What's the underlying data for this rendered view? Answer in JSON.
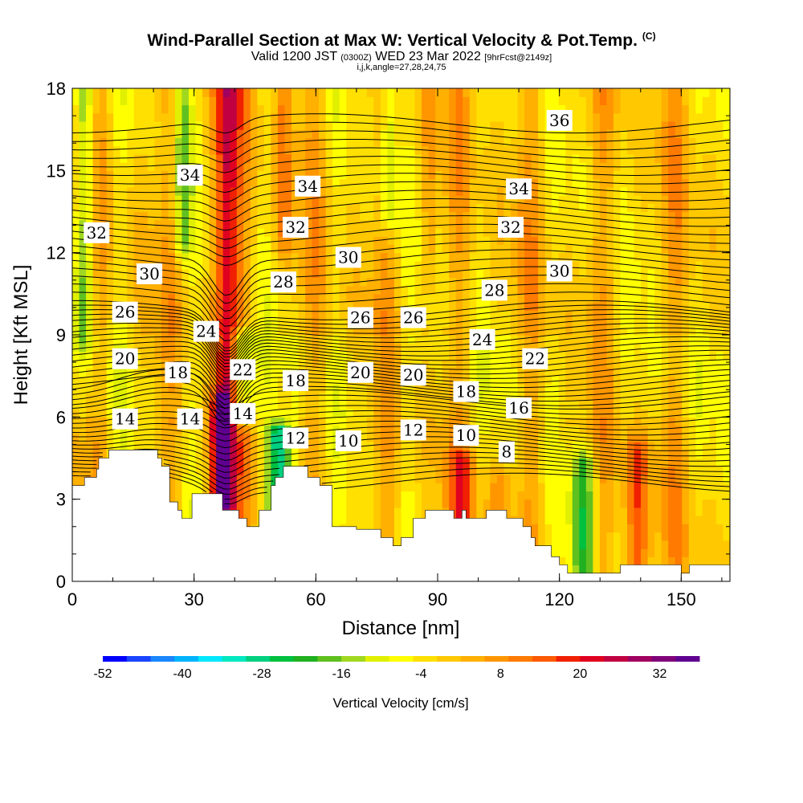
{
  "title": "Wind-Parallel Section at Max W: Vertical Velocity & Pot.Temp.",
  "copyright": "(C)",
  "subtitle": {
    "valid_main": "Valid 1200 JST",
    "valid_z": "(0300Z)",
    "valid_date": "WED 23 Mar 2022",
    "forecast": "[9hrFcst@2149z]"
  },
  "indices": "i,j,k,angle=27,28,24,75",
  "chart_data": {
    "type": "heatmap",
    "xlabel": "Distance [nm]",
    "ylabel": "Height [Kft MSL]",
    "xlim": [
      0,
      162
    ],
    "ylim": [
      0,
      18
    ],
    "x_ticks": [
      "0",
      "30",
      "60",
      "90",
      "120",
      "150"
    ],
    "x_tick_values": [
      0,
      30,
      60,
      90,
      120,
      150
    ],
    "y_ticks": [
      "0",
      "3",
      "6",
      "9",
      "12",
      "15",
      "18"
    ],
    "y_tick_values": [
      0,
      3,
      6,
      9,
      12,
      15,
      18
    ],
    "colorbar": {
      "label": "Vertical Velocity [cm/s]",
      "tick_labels": [
        "-52",
        "-40",
        "-28",
        "-16",
        "-4",
        "8",
        "20",
        "32"
      ],
      "min": -52,
      "max": 38,
      "step": 4,
      "colors": [
        "#0000ff",
        "#1a44ff",
        "#1a86ff",
        "#00b4ff",
        "#00e8ff",
        "#00e8c0",
        "#00d080",
        "#00c040",
        "#20b020",
        "#60c020",
        "#a0d820",
        "#e0f000",
        "#ffff00",
        "#ffe000",
        "#ffc800",
        "#ffb000",
        "#ff9600",
        "#ff7a00",
        "#ff5a00",
        "#f02000",
        "#e00020",
        "#c00040",
        "#a00060",
        "#80007a",
        "#600090"
      ]
    },
    "theta_contour_labels": [
      {
        "value": "36",
        "x": 120,
        "y": 16.8
      },
      {
        "value": "34",
        "x": 29,
        "y": 14.8
      },
      {
        "value": "34",
        "x": 58,
        "y": 14.4
      },
      {
        "value": "34",
        "x": 110,
        "y": 14.3
      },
      {
        "value": "32",
        "x": 6,
        "y": 12.7
      },
      {
        "value": "32",
        "x": 55,
        "y": 12.9
      },
      {
        "value": "32",
        "x": 108,
        "y": 12.9
      },
      {
        "value": "30",
        "x": 19,
        "y": 11.2
      },
      {
        "value": "30",
        "x": 68,
        "y": 11.8
      },
      {
        "value": "30",
        "x": 120,
        "y": 11.3
      },
      {
        "value": "28",
        "x": 52,
        "y": 10.9
      },
      {
        "value": "28",
        "x": 104,
        "y": 10.6
      },
      {
        "value": "26",
        "x": 13,
        "y": 9.8
      },
      {
        "value": "26",
        "x": 71,
        "y": 9.6
      },
      {
        "value": "26",
        "x": 84,
        "y": 9.6
      },
      {
        "value": "24",
        "x": 33,
        "y": 9.1
      },
      {
        "value": "24",
        "x": 101,
        "y": 8.8
      },
      {
        "value": "22",
        "x": 42,
        "y": 7.7
      },
      {
        "value": "22",
        "x": 114,
        "y": 8.1
      },
      {
        "value": "20",
        "x": 13,
        "y": 8.1
      },
      {
        "value": "20",
        "x": 71,
        "y": 7.6
      },
      {
        "value": "20",
        "x": 84,
        "y": 7.5
      },
      {
        "value": "18",
        "x": 26,
        "y": 7.6
      },
      {
        "value": "18",
        "x": 55,
        "y": 7.3
      },
      {
        "value": "18",
        "x": 97,
        "y": 6.9
      },
      {
        "value": "16",
        "x": 110,
        "y": 6.3
      },
      {
        "value": "14",
        "x": 13,
        "y": 5.9
      },
      {
        "value": "14",
        "x": 29,
        "y": 5.9
      },
      {
        "value": "14",
        "x": 42,
        "y": 6.1
      },
      {
        "value": "12",
        "x": 55,
        "y": 5.2
      },
      {
        "value": "12",
        "x": 84,
        "y": 5.5
      },
      {
        "value": "10",
        "x": 68,
        "y": 5.1
      },
      {
        "value": "10",
        "x": 97,
        "y": 5.3
      },
      {
        "value": "8",
        "x": 107,
        "y": 4.7
      }
    ],
    "terrain_height_kft": [
      {
        "x": 0,
        "h": 3.5
      },
      {
        "x": 3,
        "h": 3.5
      },
      {
        "x": 3,
        "h": 3.8
      },
      {
        "x": 6,
        "h": 3.8
      },
      {
        "x": 6,
        "h": 4.1
      },
      {
        "x": 6,
        "h": 4.1
      },
      {
        "x": 6.5,
        "h": 4.1
      },
      {
        "x": 6.5,
        "h": 4.5
      },
      {
        "x": 9,
        "h": 4.5
      },
      {
        "x": 9,
        "h": 4.8
      },
      {
        "x": 21,
        "h": 4.8
      },
      {
        "x": 21,
        "h": 4.5
      },
      {
        "x": 22,
        "h": 4.5
      },
      {
        "x": 22,
        "h": 4.2
      },
      {
        "x": 24,
        "h": 4.2
      },
      {
        "x": 24,
        "h": 3.8
      },
      {
        "x": 24,
        "h": 2.9
      },
      {
        "x": 26,
        "h": 2.9
      },
      {
        "x": 26,
        "h": 2.6
      },
      {
        "x": 27,
        "h": 2.6
      },
      {
        "x": 27,
        "h": 2.3
      },
      {
        "x": 29.5,
        "h": 2.3
      },
      {
        "x": 29.5,
        "h": 2.6
      },
      {
        "x": 29.5,
        "h": 3.2
      },
      {
        "x": 37,
        "h": 3.2
      },
      {
        "x": 37,
        "h": 2.6
      },
      {
        "x": 41,
        "h": 2.6
      },
      {
        "x": 41,
        "h": 2.3
      },
      {
        "x": 43,
        "h": 2.3
      },
      {
        "x": 43,
        "h": 2.0
      },
      {
        "x": 46,
        "h": 2.0
      },
      {
        "x": 46,
        "h": 2.6
      },
      {
        "x": 49,
        "h": 2.6
      },
      {
        "x": 49,
        "h": 3.5
      },
      {
        "x": 50,
        "h": 3.5
      },
      {
        "x": 50,
        "h": 3.8
      },
      {
        "x": 52,
        "h": 3.8
      },
      {
        "x": 52,
        "h": 4.2
      },
      {
        "x": 58,
        "h": 4.2
      },
      {
        "x": 58,
        "h": 3.8
      },
      {
        "x": 61,
        "h": 3.8
      },
      {
        "x": 61,
        "h": 3.5
      },
      {
        "x": 64,
        "h": 3.5
      },
      {
        "x": 64,
        "h": 3.2
      },
      {
        "x": 64,
        "h": 2.6
      },
      {
        "x": 64,
        "h": 2.6
      },
      {
        "x": 64,
        "h": 2.0
      },
      {
        "x": 70,
        "h": 2.0
      },
      {
        "x": 70,
        "h": 1.9
      },
      {
        "x": 76,
        "h": 1.9
      },
      {
        "x": 76,
        "h": 1.6
      },
      {
        "x": 79,
        "h": 1.6
      },
      {
        "x": 79,
        "h": 1.3
      },
      {
        "x": 81,
        "h": 1.3
      },
      {
        "x": 81,
        "h": 1.6
      },
      {
        "x": 84,
        "h": 1.6
      },
      {
        "x": 84,
        "h": 2.3
      },
      {
        "x": 87,
        "h": 2.3
      },
      {
        "x": 87,
        "h": 2.6
      },
      {
        "x": 94,
        "h": 2.6
      },
      {
        "x": 94,
        "h": 2.3
      },
      {
        "x": 96,
        "h": 2.3
      },
      {
        "x": 96,
        "h": 2.6
      },
      {
        "x": 97,
        "h": 2.6
      },
      {
        "x": 97,
        "h": 2.3
      },
      {
        "x": 102,
        "h": 2.3
      },
      {
        "x": 102,
        "h": 2.6
      },
      {
        "x": 107,
        "h": 2.6
      },
      {
        "x": 107,
        "h": 2.3
      },
      {
        "x": 111,
        "h": 2.3
      },
      {
        "x": 111,
        "h": 2.0
      },
      {
        "x": 113,
        "h": 2.0
      },
      {
        "x": 113,
        "h": 1.6
      },
      {
        "x": 114,
        "h": 1.6
      },
      {
        "x": 114,
        "h": 1.3
      },
      {
        "x": 118,
        "h": 1.3
      },
      {
        "x": 118,
        "h": 0.9
      },
      {
        "x": 120,
        "h": 0.9
      },
      {
        "x": 120,
        "h": 0.6
      },
      {
        "x": 122,
        "h": 0.6
      },
      {
        "x": 122,
        "h": 0.3
      },
      {
        "x": 135,
        "h": 0.3
      },
      {
        "x": 135,
        "h": 0.6
      },
      {
        "x": 138,
        "h": 0.6
      },
      {
        "x": 138,
        "h": 0.6
      },
      {
        "x": 150,
        "h": 0.6
      },
      {
        "x": 150,
        "h": 0.3
      },
      {
        "x": 152,
        "h": 0.3
      },
      {
        "x": 152,
        "h": 0.6
      },
      {
        "x": 162,
        "h": 0.6
      }
    ],
    "vertical_velocity_features": [
      {
        "x": 38,
        "x_halfwidth": 3,
        "z_bottom": 3.2,
        "z_top": 18,
        "w": 32
      },
      {
        "x": 36.5,
        "x_halfwidth": 2,
        "z_bottom": 3.3,
        "z_top": 6,
        "w": 36
      },
      {
        "x": 42,
        "x_halfwidth": 2.5,
        "z_bottom": 6.5,
        "z_top": 8.5,
        "w": -14
      },
      {
        "x": 51,
        "x_halfwidth": 3,
        "z_bottom": 2.8,
        "z_top": 5.0,
        "w": -28
      },
      {
        "x": 126,
        "x_halfwidth": 3,
        "z_bottom": 0.5,
        "z_top": 3.8,
        "w": -14
      },
      {
        "x": 139,
        "x_halfwidth": 3,
        "z_bottom": 0.6,
        "z_top": 4.2,
        "w": 24
      },
      {
        "x": 3,
        "x_halfwidth": 2.5,
        "z_bottom": 10,
        "z_top": 18,
        "w": -12
      },
      {
        "x": 27,
        "x_halfwidth": 2,
        "z_bottom": 13,
        "z_top": 18,
        "w": -10
      },
      {
        "x": 78,
        "x_halfwidth": 2,
        "z_bottom": 14,
        "z_top": 18,
        "w": -10
      },
      {
        "x": 52,
        "x_halfwidth": 2,
        "z_bottom": 13,
        "z_top": 18,
        "w": 16
      },
      {
        "x": 88,
        "x_halfwidth": 2,
        "z_bottom": 12,
        "z_top": 18,
        "w": 14
      },
      {
        "x": 96,
        "x_halfwidth": 3,
        "z_bottom": 2.5,
        "z_top": 4.0,
        "w": 20
      },
      {
        "x": 105,
        "x_halfwidth": 3,
        "z_bottom": 2.5,
        "z_top": 3.5,
        "w": 14
      }
    ],
    "grid": false
  }
}
